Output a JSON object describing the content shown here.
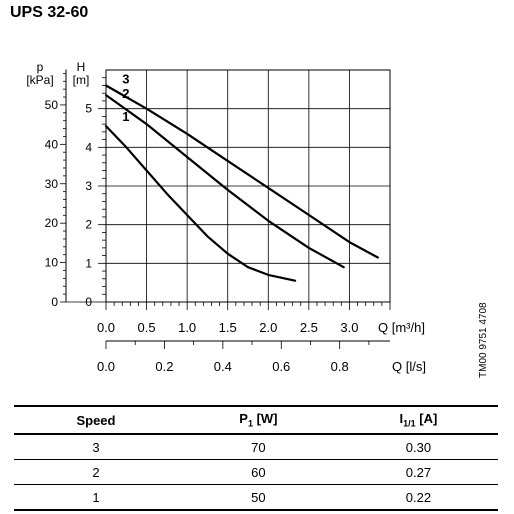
{
  "title": "UPS 32-60",
  "side_code": "TM00 9751 4708",
  "chart_data": {
    "type": "line",
    "left_axes": [
      {
        "unit_symbol": "p",
        "unit": "[kPa]",
        "ticks": [
          "0",
          "10",
          "20",
          "30",
          "40",
          "50"
        ]
      },
      {
        "unit_symbol": "H",
        "unit": "[m]",
        "ticks": [
          "0",
          "1",
          "2",
          "3",
          "4",
          "5"
        ]
      }
    ],
    "x_axes": [
      {
        "label": "Q [m³/h]",
        "ticks": [
          "0.0",
          "0.5",
          "1.0",
          "1.5",
          "2.0",
          "2.5",
          "3.0"
        ]
      },
      {
        "label": "Q [l/s]",
        "ticks": [
          "0.0",
          "0.2",
          "0.4",
          "0.6",
          "0.8"
        ]
      }
    ],
    "xlim": [
      0,
      3.5
    ],
    "ylim": [
      0,
      6
    ],
    "grid": true,
    "series": [
      {
        "name": "3",
        "x": [
          0.0,
          0.5,
          1.0,
          1.5,
          2.0,
          2.5,
          3.0,
          3.35
        ],
        "y": [
          5.6,
          5.0,
          4.35,
          3.65,
          2.95,
          2.25,
          1.55,
          1.15
        ]
      },
      {
        "name": "2",
        "x": [
          0.0,
          0.5,
          1.0,
          1.5,
          2.0,
          2.5,
          2.93
        ],
        "y": [
          5.35,
          4.6,
          3.75,
          2.9,
          2.1,
          1.4,
          0.9
        ]
      },
      {
        "name": "1",
        "x": [
          0.0,
          0.25,
          0.5,
          0.75,
          1.0,
          1.25,
          1.5,
          1.75,
          2.0,
          2.33
        ],
        "y": [
          4.55,
          4.0,
          3.4,
          2.8,
          2.25,
          1.7,
          1.25,
          0.9,
          0.7,
          0.55
        ]
      }
    ]
  },
  "table": {
    "headers": {
      "speed": "Speed",
      "p_main": "P",
      "p_sub": "1",
      "p_unit": " [W]",
      "i_main": "I",
      "i_sub": "1/1",
      "i_unit": " [A]"
    },
    "rows": [
      {
        "speed": "3",
        "power": "70",
        "current": "0.30"
      },
      {
        "speed": "2",
        "power": "60",
        "current": "0.27"
      },
      {
        "speed": "1",
        "power": "50",
        "current": "0.22"
      }
    ]
  }
}
